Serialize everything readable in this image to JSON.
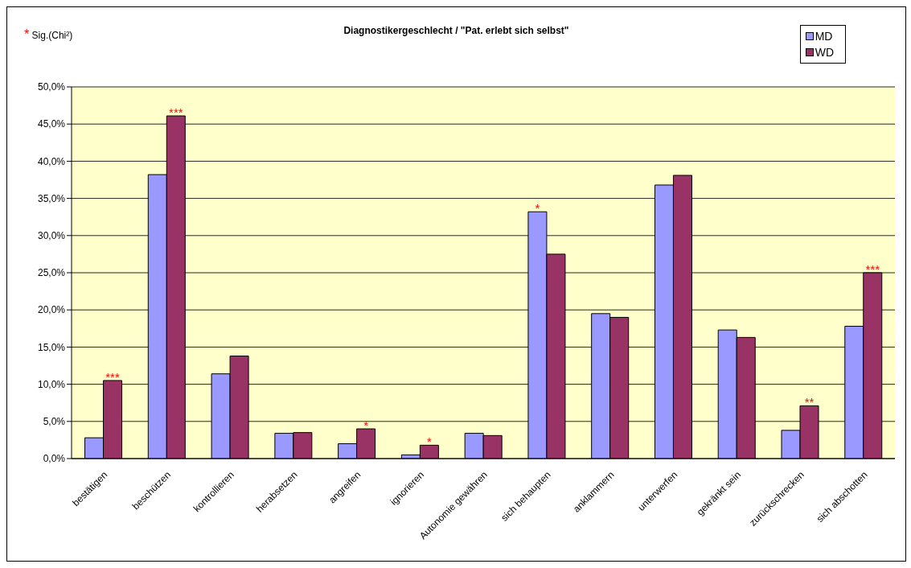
{
  "chart_data": {
    "type": "bar",
    "title": "Diagnostikergeschlecht / \"Pat. erlebt sich selbst\"",
    "categories": [
      "bestätigen",
      "beschützen",
      "kontrollieren",
      "herabsetzen",
      "angreifen",
      "ignorieren",
      "Autonomie gewähren",
      "sich behaupten",
      "anklammern",
      "unterwerfen",
      "gekränkt sein",
      "zurückschrecken",
      "sich abschotten"
    ],
    "series": [
      {
        "name": "MD",
        "color": "#9999ff",
        "values": [
          2.8,
          38.2,
          11.4,
          3.4,
          2.0,
          0.5,
          3.4,
          33.2,
          19.5,
          36.8,
          17.3,
          3.8,
          17.8
        ]
      },
      {
        "name": "WD",
        "color": "#993366",
        "values": [
          10.5,
          46.1,
          13.8,
          3.5,
          4.0,
          1.8,
          3.1,
          27.5,
          19.0,
          38.1,
          16.3,
          7.1,
          25.0
        ]
      }
    ],
    "ylim": [
      0,
      50
    ],
    "yticks": [
      {
        "value": 0,
        "label": "0,0%"
      },
      {
        "value": 5,
        "label": "5,0%"
      },
      {
        "value": 10,
        "label": "10,0%"
      },
      {
        "value": 15,
        "label": "15,0%"
      },
      {
        "value": 20,
        "label": "20,0%"
      },
      {
        "value": 25,
        "label": "25,0%"
      },
      {
        "value": 30,
        "label": "30,0%"
      },
      {
        "value": 35,
        "label": "35,0%"
      },
      {
        "value": 40,
        "label": "40,0%"
      },
      {
        "value": 45,
        "label": "45,0%"
      },
      {
        "value": 50,
        "label": "50,0%"
      }
    ],
    "grid": "y",
    "legend": "top right",
    "annotations": [
      "* Sig.(Chi²)",
      {
        "text": "***",
        "x": "bestätigen",
        "y": 10.5
      },
      {
        "text": "***",
        "x": "beschützen",
        "y": 46.1
      },
      {
        "text": "*",
        "x": "angreifen",
        "y": 4.0
      },
      {
        "text": "*",
        "x": "ignorieren",
        "y": 1.8
      },
      {
        "text": "*",
        "x": "sich behaupten",
        "y": 33.2
      },
      {
        "text": "**",
        "x": "zurückschrecken",
        "y": 7.1
      },
      {
        "text": "***",
        "x": "sich abschotten",
        "y": 25.0
      }
    ]
  }
}
